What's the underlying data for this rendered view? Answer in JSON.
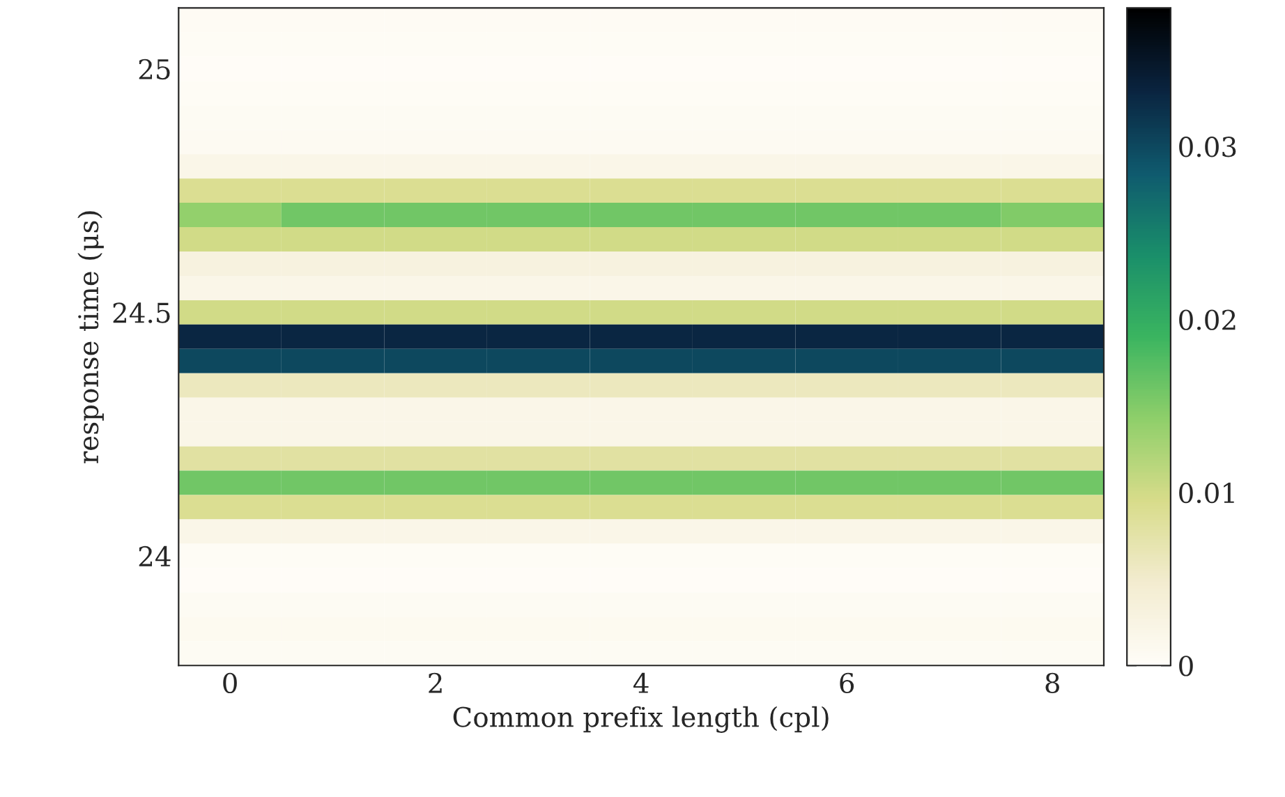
{
  "chart_data": {
    "type": "heatmap",
    "xlabel": "Common prefix length (cpl)",
    "ylabel": "response time (μs)",
    "categories": [
      "0",
      null,
      "2",
      null,
      "4",
      null,
      "6",
      null,
      "8"
    ],
    "y_categories": [
      null,
      null,
      "25",
      null,
      null,
      null,
      null,
      null,
      null,
      null,
      null,
      null,
      "24.5",
      null,
      null,
      null,
      null,
      null,
      null,
      null,
      null,
      null,
      "24",
      null,
      null,
      null,
      null
    ],
    "clim": [
      0,
      0.038
    ],
    "cticks": [
      0,
      0.01,
      0.02,
      0.03
    ],
    "colors": [
      "#fffdf8",
      "#f3ecd0",
      "#d8dc8a",
      "#8fcf6a",
      "#3bb560",
      "#1a8f6a",
      "#0f5a6e",
      "#0a2440",
      "#000000"
    ],
    "cells": [
      [
        0.0005,
        0.0005,
        0.0005,
        0.0005,
        0.0005,
        0.0005,
        0.0005,
        0.0005,
        0.0005
      ],
      [
        0.0004,
        0.0004,
        0.0004,
        0.0004,
        0.0004,
        0.0004,
        0.0004,
        0.0004,
        0.0004
      ],
      [
        0.0002,
        0.0002,
        0.0002,
        0.0002,
        0.0002,
        0.0002,
        0.0002,
        0.0002,
        0.0002
      ],
      [
        0.0004,
        0.0004,
        0.0004,
        0.0004,
        0.0004,
        0.0004,
        0.0004,
        0.0004,
        0.0004
      ],
      [
        0.0006,
        0.0006,
        0.0006,
        0.0006,
        0.0006,
        0.0006,
        0.0006,
        0.0006,
        0.0006
      ],
      [
        0.0008,
        0.0008,
        0.0008,
        0.0008,
        0.0008,
        0.0008,
        0.0008,
        0.0008,
        0.0008
      ],
      [
        0.002,
        0.002,
        0.002,
        0.002,
        0.002,
        0.002,
        0.002,
        0.002,
        0.002
      ],
      [
        0.009,
        0.009,
        0.009,
        0.009,
        0.009,
        0.009,
        0.009,
        0.009,
        0.009
      ],
      [
        0.014,
        0.016,
        0.016,
        0.016,
        0.016,
        0.016,
        0.016,
        0.016,
        0.015
      ],
      [
        0.01,
        0.01,
        0.01,
        0.01,
        0.01,
        0.01,
        0.01,
        0.01,
        0.01
      ],
      [
        0.003,
        0.003,
        0.003,
        0.003,
        0.003,
        0.003,
        0.003,
        0.003,
        0.003
      ],
      [
        0.002,
        0.002,
        0.002,
        0.002,
        0.002,
        0.002,
        0.002,
        0.002,
        0.002
      ],
      [
        0.01,
        0.01,
        0.01,
        0.01,
        0.01,
        0.01,
        0.01,
        0.01,
        0.01
      ],
      [
        0.033,
        0.033,
        0.033,
        0.033,
        0.033,
        0.033,
        0.033,
        0.033,
        0.033
      ],
      [
        0.03,
        0.03,
        0.03,
        0.03,
        0.03,
        0.03,
        0.03,
        0.03,
        0.03
      ],
      [
        0.006,
        0.006,
        0.006,
        0.006,
        0.006,
        0.006,
        0.006,
        0.006,
        0.006
      ],
      [
        0.002,
        0.002,
        0.002,
        0.002,
        0.002,
        0.002,
        0.002,
        0.002,
        0.002
      ],
      [
        0.002,
        0.002,
        0.002,
        0.002,
        0.002,
        0.002,
        0.002,
        0.002,
        0.002
      ],
      [
        0.008,
        0.008,
        0.008,
        0.008,
        0.008,
        0.008,
        0.008,
        0.008,
        0.008
      ],
      [
        0.016,
        0.016,
        0.016,
        0.016,
        0.016,
        0.016,
        0.016,
        0.016,
        0.016
      ],
      [
        0.009,
        0.009,
        0.009,
        0.009,
        0.009,
        0.009,
        0.009,
        0.009,
        0.009
      ],
      [
        0.002,
        0.002,
        0.002,
        0.002,
        0.002,
        0.002,
        0.002,
        0.002,
        0.002
      ],
      [
        0.0004,
        0.0004,
        0.0004,
        0.0004,
        0.0004,
        0.0004,
        0.0004,
        0.0004,
        0.0004
      ],
      [
        0.0002,
        0.0002,
        0.0002,
        0.0002,
        0.0002,
        0.0002,
        0.0002,
        0.0002,
        0.0002
      ],
      [
        0.0006,
        0.0006,
        0.0006,
        0.0006,
        0.0006,
        0.0006,
        0.0006,
        0.0006,
        0.0006
      ],
      [
        0.001,
        0.001,
        0.001,
        0.001,
        0.001,
        0.001,
        0.001,
        0.001,
        0.001
      ],
      [
        0.0006,
        0.0006,
        0.0006,
        0.0006,
        0.0006,
        0.0006,
        0.0006,
        0.0006,
        0.0006
      ]
    ]
  }
}
